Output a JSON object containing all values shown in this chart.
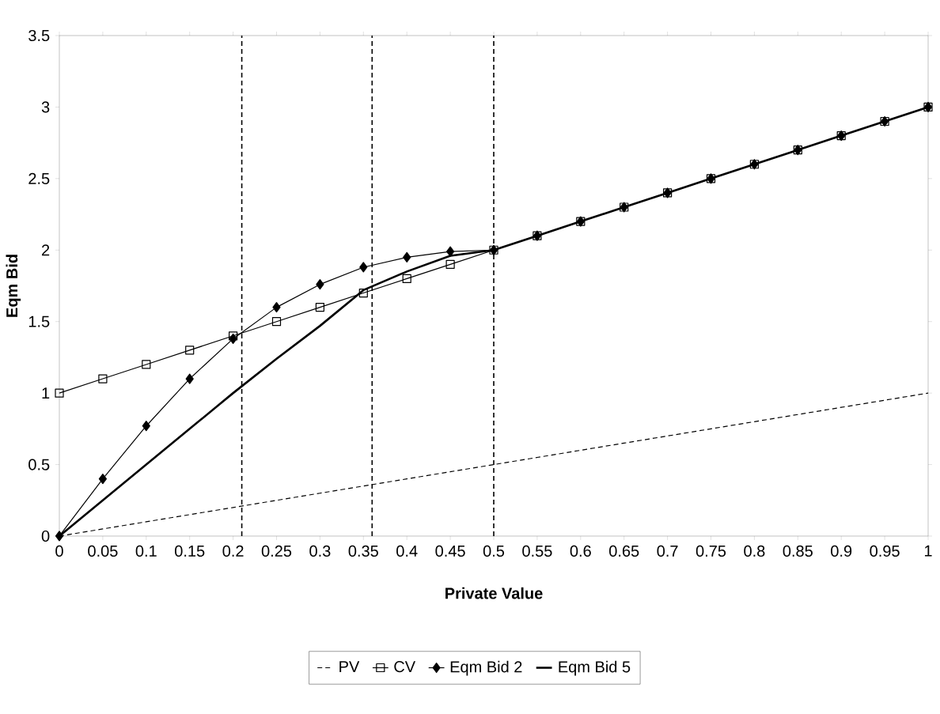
{
  "chart_data": {
    "type": "line",
    "xlabel": "Private Value",
    "ylabel": "Eqm Bid",
    "x": [
      0,
      0.05,
      0.1,
      0.15,
      0.2,
      0.25,
      0.3,
      0.35,
      0.4,
      0.45,
      0.5,
      0.55,
      0.6,
      0.65,
      0.7,
      0.75,
      0.8,
      0.85,
      0.9,
      0.95,
      1
    ],
    "series": [
      {
        "name": "PV",
        "color": "#000000",
        "marker": "none",
        "line_style": "dashed",
        "values": [
          0,
          0.05,
          0.1,
          0.15,
          0.2,
          0.25,
          0.3,
          0.35,
          0.4,
          0.45,
          0.5,
          0.55,
          0.6,
          0.65,
          0.7,
          0.75,
          0.8,
          0.85,
          0.9,
          0.95,
          1
        ]
      },
      {
        "name": "CV",
        "color": "#000000",
        "marker": "square",
        "line_style": "solid",
        "values": [
          1,
          1.1,
          1.2,
          1.3,
          1.4,
          1.5,
          1.6,
          1.7,
          1.8,
          1.9,
          2,
          2.1,
          2.2,
          2.3,
          2.4,
          2.5,
          2.6,
          2.7,
          2.8,
          2.9,
          3
        ]
      },
      {
        "name": "Eqm Bid 2",
        "color": "#000000",
        "marker": "diamond",
        "line_style": "solid",
        "values": [
          0,
          0.4,
          0.77,
          1.1,
          1.38,
          1.6,
          1.76,
          1.88,
          1.95,
          1.99,
          2,
          2.1,
          2.2,
          2.3,
          2.4,
          2.5,
          2.6,
          2.7,
          2.8,
          2.9,
          3
        ]
      },
      {
        "name": "Eqm Bid 5",
        "color": "#000000",
        "marker": "none",
        "line_style": "solid",
        "values": [
          0,
          0.25,
          0.5,
          0.75,
          1,
          1.24,
          1.47,
          1.72,
          1.85,
          1.96,
          2,
          2.1,
          2.2,
          2.3,
          2.4,
          2.5,
          2.6,
          2.7,
          2.8,
          2.9,
          3
        ]
      }
    ],
    "xlim": [
      0,
      1
    ],
    "ylim": [
      0,
      3.5
    ],
    "xticks": [
      0,
      0.05,
      0.1,
      0.15,
      0.2,
      0.25,
      0.3,
      0.35,
      0.4,
      0.45,
      0.5,
      0.55,
      0.6,
      0.65,
      0.7,
      0.75,
      0.8,
      0.85,
      0.9,
      0.95,
      1
    ],
    "yticks": [
      0,
      0.5,
      1,
      1.5,
      2,
      2.5,
      3,
      3.5
    ],
    "ref_lines": [
      {
        "axis": "x",
        "value": 0.21,
        "line_style": "dashed",
        "color": "#000000"
      },
      {
        "axis": "x",
        "value": 0.36,
        "line_style": "dashed",
        "color": "#000000"
      },
      {
        "axis": "x",
        "value": 0.5,
        "line_style": "dashed",
        "color": "#000000"
      }
    ],
    "grid": false,
    "legend": "bottom"
  }
}
